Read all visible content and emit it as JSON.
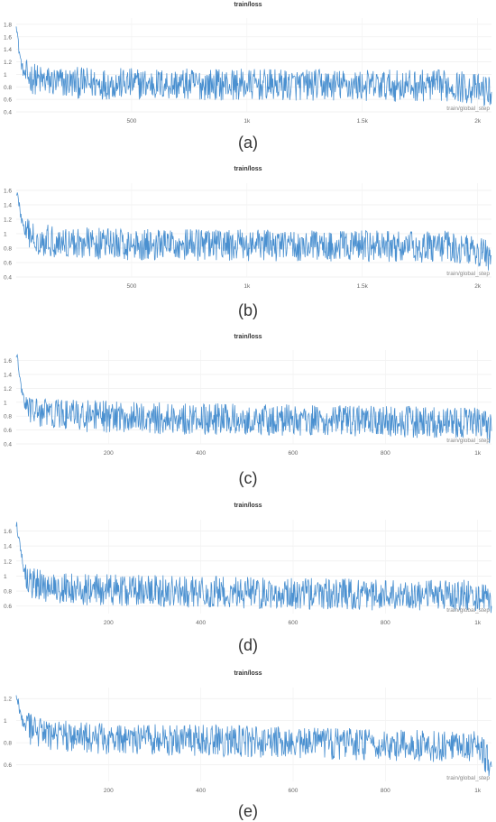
{
  "chart_data": [
    {
      "type": "line",
      "title": "train/loss",
      "caption": "(a)",
      "xlabel": "train/global_step",
      "xlim": [
        0,
        2060
      ],
      "ylim": [
        0.4,
        1.9
      ],
      "yticks": [
        0.4,
        0.6,
        0.8,
        1,
        1.2,
        1.4,
        1.6,
        1.8
      ],
      "xticks": [
        500,
        1000,
        1500,
        2000
      ],
      "xtick_labels": [
        "500",
        "1k",
        "1.5k",
        "2k"
      ],
      "color": "#4a90d0",
      "series": [
        {
          "x": [
            0,
            10,
            20,
            30,
            40,
            60,
            80,
            100,
            150,
            200,
            300,
            400,
            500,
            700,
            900,
            1100,
            1300,
            1500,
            1700,
            1900,
            2060
          ],
          "y": [
            1.85,
            1.45,
            1.2,
            1.05,
            0.98,
            0.95,
            0.93,
            0.9,
            0.88,
            0.87,
            0.86,
            0.85,
            0.85,
            0.84,
            0.84,
            0.83,
            0.83,
            0.82,
            0.82,
            0.82,
            0.72
          ]
        }
      ]
    },
    {
      "type": "line",
      "title": "train/loss",
      "caption": "(b)",
      "xlabel": "train/global_step",
      "xlim": [
        0,
        2060
      ],
      "ylim": [
        0.4,
        1.7
      ],
      "yticks": [
        0.4,
        0.6,
        0.8,
        1,
        1.2,
        1.4,
        1.6
      ],
      "xticks": [
        500,
        1000,
        1500,
        2000
      ],
      "xtick_labels": [
        "500",
        "1k",
        "1.5k",
        "2k"
      ],
      "color": "#4a90d0",
      "series": [
        {
          "x": [
            0,
            10,
            20,
            30,
            40,
            60,
            80,
            100,
            150,
            200,
            300,
            400,
            500,
            700,
            900,
            1100,
            1300,
            1500,
            1700,
            1900,
            2060
          ],
          "y": [
            1.6,
            1.45,
            1.25,
            1.1,
            1.0,
            0.97,
            0.94,
            0.92,
            0.9,
            0.88,
            0.87,
            0.86,
            0.85,
            0.85,
            0.84,
            0.84,
            0.83,
            0.83,
            0.82,
            0.82,
            0.7
          ]
        }
      ]
    },
    {
      "type": "line",
      "title": "train/loss",
      "caption": "(c)",
      "xlabel": "train/global_step",
      "xlim": [
        0,
        1030
      ],
      "ylim": [
        0.4,
        1.75
      ],
      "yticks": [
        0.4,
        0.6,
        0.8,
        1,
        1.2,
        1.4,
        1.6
      ],
      "xticks": [
        200,
        400,
        600,
        800,
        1000
      ],
      "xtick_labels": [
        "200",
        "400",
        "600",
        "800",
        "1k"
      ],
      "color": "#4a90d0",
      "series": [
        {
          "x": [
            0,
            5,
            10,
            15,
            20,
            30,
            40,
            60,
            80,
            100,
            150,
            200,
            300,
            400,
            500,
            600,
            700,
            800,
            900,
            1000,
            1030
          ],
          "y": [
            1.7,
            1.5,
            1.25,
            1.05,
            0.95,
            0.9,
            0.87,
            0.85,
            0.83,
            0.82,
            0.8,
            0.79,
            0.77,
            0.76,
            0.75,
            0.74,
            0.73,
            0.72,
            0.71,
            0.71,
            0.6
          ]
        }
      ]
    },
    {
      "type": "line",
      "title": "train/loss",
      "caption": "(d)",
      "xlabel": "train/global_step",
      "xlim": [
        0,
        1030
      ],
      "ylim": [
        0.5,
        1.75
      ],
      "yticks": [
        0.6,
        0.8,
        1,
        1.2,
        1.4,
        1.6
      ],
      "xticks": [
        200,
        400,
        600,
        800,
        1000
      ],
      "xtick_labels": [
        "200",
        "400",
        "600",
        "800",
        "1k"
      ],
      "color": "#4a90d0",
      "series": [
        {
          "x": [
            0,
            5,
            10,
            15,
            20,
            30,
            40,
            60,
            80,
            100,
            150,
            200,
            300,
            400,
            500,
            600,
            700,
            800,
            900,
            1000,
            1030
          ],
          "y": [
            1.7,
            1.55,
            1.35,
            1.15,
            1.0,
            0.93,
            0.89,
            0.86,
            0.85,
            0.84,
            0.82,
            0.81,
            0.8,
            0.79,
            0.78,
            0.77,
            0.76,
            0.75,
            0.74,
            0.74,
            0.62
          ]
        }
      ]
    },
    {
      "type": "line",
      "title": "train/loss",
      "caption": "(e)",
      "xlabel": "train/global_step",
      "xlim": [
        0,
        1030
      ],
      "ylim": [
        0.45,
        1.3
      ],
      "yticks": [
        0.6,
        0.8,
        1,
        1.2
      ],
      "xticks": [
        200,
        400,
        600,
        800,
        1000
      ],
      "xtick_labels": [
        "200",
        "400",
        "600",
        "800",
        "1k"
      ],
      "color": "#4a90d0",
      "series": [
        {
          "x": [
            0,
            5,
            10,
            15,
            20,
            30,
            40,
            60,
            80,
            100,
            150,
            200,
            300,
            400,
            500,
            600,
            700,
            800,
            900,
            1000,
            1030
          ],
          "y": [
            1.25,
            1.15,
            1.05,
            0.98,
            0.95,
            0.92,
            0.9,
            0.88,
            0.87,
            0.86,
            0.85,
            0.84,
            0.83,
            0.82,
            0.81,
            0.8,
            0.79,
            0.78,
            0.77,
            0.77,
            0.6
          ]
        }
      ]
    }
  ]
}
